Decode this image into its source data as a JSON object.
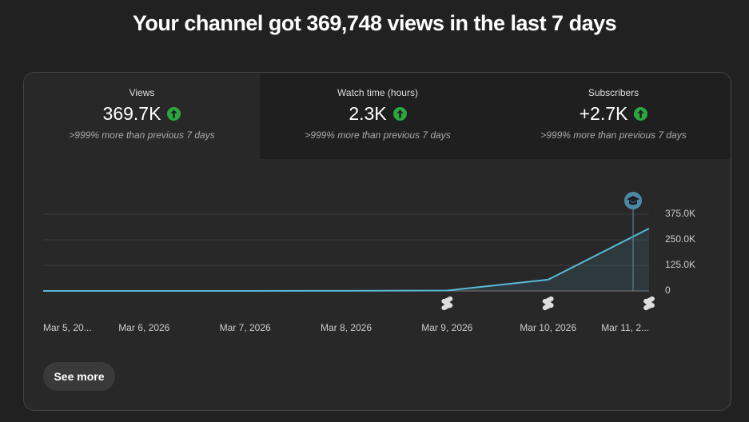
{
  "header": {
    "title": "Your channel got 369,748 views in the last 7 days"
  },
  "tabs": [
    {
      "label": "Views",
      "value": "369.7K",
      "note": ">999% more than previous 7 days"
    },
    {
      "label": "Watch time (hours)",
      "value": "2.3K",
      "note": ">999% more than previous 7 days"
    },
    {
      "label": "Subscribers",
      "value": "+2.7K",
      "note": ">999% more than previous 7 days"
    }
  ],
  "chart_data": {
    "type": "line",
    "categories": [
      "Mar 5, 20...",
      "Mar 6, 2026",
      "Mar 7, 2026",
      "Mar 8, 2026",
      "Mar 9, 2026",
      "Mar 10, 2026",
      "Mar 11, 2..."
    ],
    "values": [
      0,
      0,
      0,
      500,
      2000,
      55000,
      305000
    ],
    "color": "#5bb8d8",
    "ylim": [
      0,
      375000
    ],
    "yticks": [
      {
        "value": 0,
        "label": "0"
      },
      {
        "value": 125000,
        "label": "125.0K"
      },
      {
        "value": 250000,
        "label": "250.0K"
      },
      {
        "value": 375000,
        "label": "375.0K"
      }
    ],
    "grid": true
  },
  "button": "See more"
}
